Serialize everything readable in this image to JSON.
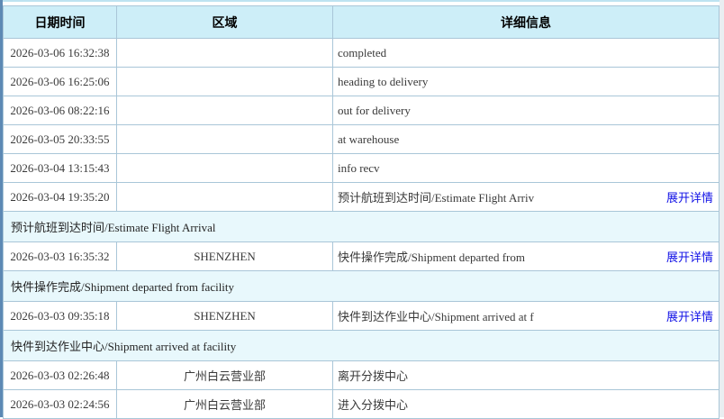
{
  "table": {
    "columns": [
      {
        "key": "datetime",
        "label": "日期时间"
      },
      {
        "key": "area",
        "label": "区域"
      },
      {
        "key": "detail",
        "label": "详细信息"
      }
    ],
    "expand_label": "展开详情",
    "rows": [
      {
        "type": "entry",
        "datetime": "2026-03-06 16:32:38",
        "area": "",
        "detail": "completed",
        "expandable": false
      },
      {
        "type": "entry",
        "datetime": "2026-03-06 16:25:06",
        "area": "",
        "detail": "heading to delivery",
        "expandable": false
      },
      {
        "type": "entry",
        "datetime": "2026-03-06 08:22:16",
        "area": "",
        "detail": "out for delivery",
        "expandable": false
      },
      {
        "type": "entry",
        "datetime": "2026-03-05 20:33:55",
        "area": "",
        "detail": "at warehouse",
        "expandable": false
      },
      {
        "type": "entry",
        "datetime": "2026-03-04 13:15:43",
        "area": "",
        "detail": "info recv",
        "expandable": false
      },
      {
        "type": "entry",
        "datetime": "2026-03-04 19:35:20",
        "area": "",
        "detail": "预计航班到达时间/Estimate Flight Arriv",
        "expandable": true
      },
      {
        "type": "expanded",
        "detail": "预计航班到达时间/Estimate Flight Arrival"
      },
      {
        "type": "entry",
        "datetime": "2026-03-03 16:35:32",
        "area": "SHENZHEN",
        "detail": "快件操作完成/Shipment departed from",
        "expandable": true
      },
      {
        "type": "expanded",
        "detail": "快件操作完成/Shipment departed from facility"
      },
      {
        "type": "entry",
        "datetime": "2026-03-03 09:35:18",
        "area": "SHENZHEN",
        "detail": "快件到达作业中心/Shipment arrived at f",
        "expandable": true
      },
      {
        "type": "expanded",
        "detail": "快件到达作业中心/Shipment arrived at facility"
      },
      {
        "type": "entry",
        "datetime": "2026-03-03 02:26:48",
        "area": "广州白云营业部",
        "detail": "离开分拨中心",
        "expandable": false
      },
      {
        "type": "entry",
        "datetime": "2026-03-03 02:24:56",
        "area": "广州白云营业部",
        "detail": "进入分拨中心",
        "expandable": false
      }
    ],
    "colors": {
      "accent_bar": "#5d89b4",
      "header_bg": "#cdeef8",
      "expanded_row_bg": "#e8f8fc",
      "cell_border": "#a9c6d8",
      "link": "#1010e6",
      "top_border": "#bde3f1",
      "right_gutter": "#e9eef1"
    }
  }
}
